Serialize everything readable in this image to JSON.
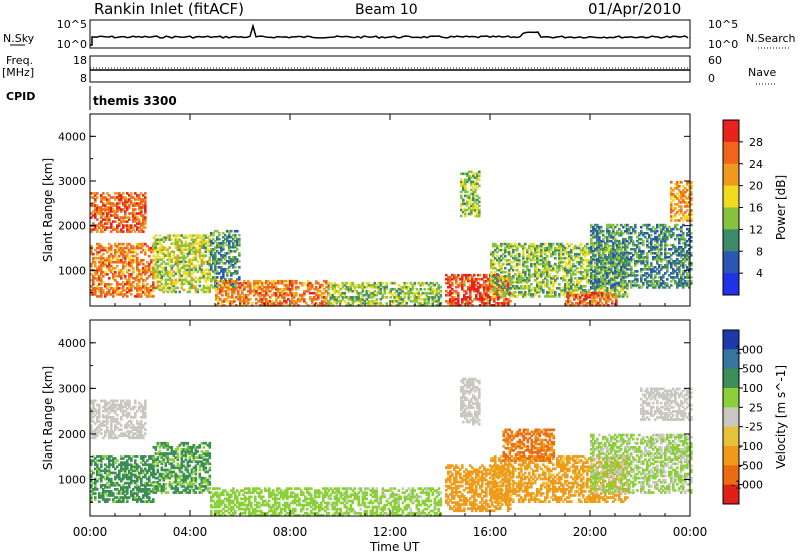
{
  "header": {
    "station": "Rankin Inlet (fitACF)",
    "beam": "Beam 10",
    "date": "01/Apr/2010"
  },
  "panels": {
    "nsky_label": "N.Sky",
    "nsky_ticks": [
      "10^5",
      "10^0"
    ],
    "nsearch_label": "N.Search",
    "freq_label": "Freq.",
    "freq_unit": "[MHz]",
    "freq_ticks": [
      "18",
      "8"
    ],
    "nave_label": "Nave",
    "nave_ticks": [
      "60",
      "0"
    ],
    "cpid_label": "CPID",
    "cpid_value": "themis 3300"
  },
  "colors": {
    "power": [
      "#1f32e6",
      "#2a56b5",
      "#3c8a69",
      "#86c23c",
      "#f2da1f",
      "#f0991f",
      "#f0641c",
      "#e6231c"
    ],
    "velocity": [
      "#1d3aa8",
      "#3575a0",
      "#3b8e55",
      "#8bd03a",
      "#c8c8c0",
      "#e6c23a",
      "#f09a1a",
      "#ec6a12",
      "#e02018"
    ],
    "line": "#000000",
    "background": "#ffffff"
  },
  "chart_data": [
    {
      "type": "heatmap",
      "title": "",
      "ylabel": "Slant Range [km]",
      "xlabel": "",
      "x_tick_labels": [
        "00:00",
        "04:00",
        "08:00",
        "12:00",
        "16:00",
        "20:00",
        "00:00"
      ],
      "x_ticks_hours": [
        0,
        4,
        8,
        12,
        16,
        20,
        24
      ],
      "ylim": [
        200,
        4500
      ],
      "y_ticks": [
        "1000",
        "2000",
        "3000",
        "4000"
      ],
      "colorbar_label": "Power [dB]",
      "colorbar_ticks": [
        "4",
        "8",
        "12",
        "16",
        "20",
        "24",
        "28"
      ],
      "colorbar_range": [
        0,
        32
      ],
      "regions": [
        {
          "t0": 0.0,
          "t1": 2.2,
          "r0": 1850,
          "r1": 2750,
          "v": 26
        },
        {
          "t0": 0.0,
          "t1": 2.5,
          "r0": 400,
          "r1": 1600,
          "v": 24
        },
        {
          "t0": 2.5,
          "t1": 4.8,
          "r0": 500,
          "r1": 1800,
          "v": 16
        },
        {
          "t0": 4.8,
          "t1": 6.0,
          "r0": 600,
          "r1": 1900,
          "v": 10
        },
        {
          "t0": 5.0,
          "t1": 9.5,
          "r0": 200,
          "r1": 750,
          "v": 24
        },
        {
          "t0": 9.5,
          "t1": 14.0,
          "r0": 200,
          "r1": 700,
          "v": 14
        },
        {
          "t0": 14.2,
          "t1": 16.8,
          "r0": 200,
          "r1": 900,
          "v": 28
        },
        {
          "t0": 14.8,
          "t1": 15.6,
          "r0": 2200,
          "r1": 3200,
          "v": 14
        },
        {
          "t0": 16.0,
          "t1": 21.5,
          "r0": 400,
          "r1": 1600,
          "v": 14
        },
        {
          "t0": 19.0,
          "t1": 21.0,
          "r0": 200,
          "r1": 500,
          "v": 26
        },
        {
          "t0": 20.0,
          "t1": 24.0,
          "r0": 600,
          "r1": 2000,
          "v": 10
        },
        {
          "t0": 23.2,
          "t1": 24.0,
          "r0": 2100,
          "r1": 3000,
          "v": 22
        }
      ]
    },
    {
      "type": "heatmap",
      "title": "",
      "ylabel": "Slant Range [km]",
      "xlabel": "Time UT",
      "x_tick_labels": [
        "00:00",
        "04:00",
        "08:00",
        "12:00",
        "16:00",
        "20:00",
        "00:00"
      ],
      "x_ticks_hours": [
        0,
        4,
        8,
        12,
        16,
        20,
        24
      ],
      "ylim": [
        200,
        4500
      ],
      "y_ticks": [
        "1000",
        "2000",
        "3000",
        "4000"
      ],
      "colorbar_label": "Velocity [m s^-1]",
      "colorbar_ticks": [
        "1000",
        "500",
        "100",
        "25",
        "-25",
        "-100",
        "-500",
        "-1000"
      ],
      "colorbar_range": [
        -1200,
        1200
      ],
      "regions": [
        {
          "t0": 0.0,
          "t1": 2.2,
          "r0": 1900,
          "r1": 2750,
          "v": 0
        },
        {
          "t0": 0.0,
          "t1": 2.5,
          "r0": 500,
          "r1": 1500,
          "v": 150
        },
        {
          "t0": 2.5,
          "t1": 4.8,
          "r0": 700,
          "r1": 1800,
          "v": 120
        },
        {
          "t0": 4.8,
          "t1": 9.5,
          "r0": 200,
          "r1": 800,
          "v": 60
        },
        {
          "t0": 9.5,
          "t1": 14.0,
          "r0": 200,
          "r1": 800,
          "v": 40
        },
        {
          "t0": 14.8,
          "t1": 15.6,
          "r0": 2200,
          "r1": 3200,
          "v": 0
        },
        {
          "t0": 14.2,
          "t1": 16.8,
          "r0": 300,
          "r1": 1300,
          "v": -200
        },
        {
          "t0": 16.0,
          "t1": 21.5,
          "r0": 500,
          "r1": 1500,
          "v": -150
        },
        {
          "t0": 16.5,
          "t1": 18.5,
          "r0": 1400,
          "r1": 2100,
          "v": -600
        },
        {
          "t0": 20.0,
          "t1": 24.0,
          "r0": 700,
          "r1": 2000,
          "v": 30
        },
        {
          "t0": 22.0,
          "t1": 24.0,
          "r0": 2300,
          "r1": 3000,
          "v": 0
        }
      ]
    }
  ]
}
